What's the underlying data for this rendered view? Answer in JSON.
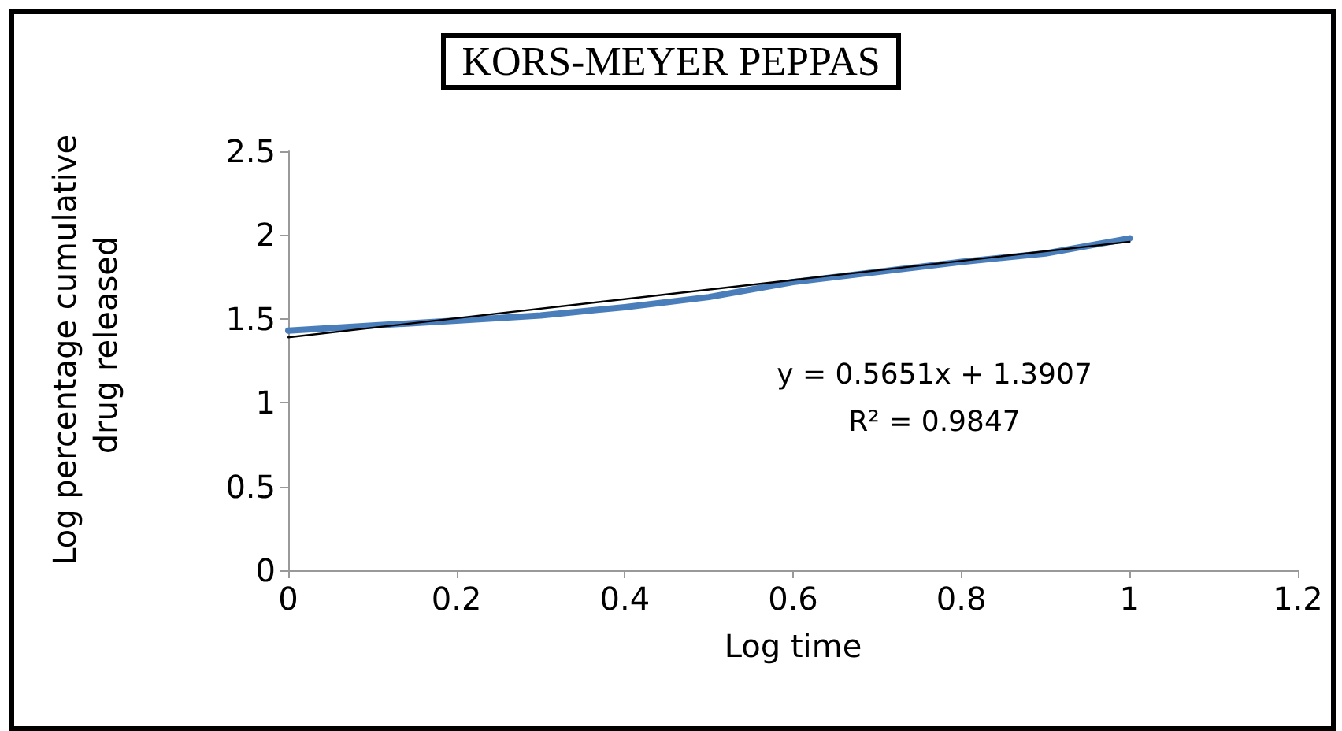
{
  "chart_data": {
    "type": "line",
    "title": "KORS-MEYER PEPPAS",
    "xlabel": "Log time",
    "ylabel": "Log percentage cumulative drug released",
    "series": [
      {
        "color": "#4a7ebb",
        "x": [
          0,
          0.1,
          0.2,
          0.3,
          0.4,
          0.5,
          0.6,
          0.7,
          0.8,
          0.9,
          1
        ],
        "values": [
          1.43,
          1.46,
          1.49,
          1.52,
          1.57,
          1.63,
          1.72,
          1.78,
          1.84,
          1.89,
          1.98
        ]
      },
      {
        "type": "line",
        "color": "#000000",
        "x": [
          0,
          1
        ],
        "values": [
          1.39,
          1.96
        ]
      }
    ],
    "annotations": [
      "y = 0.5651x + 1.3907",
      "R² = 0.9847"
    ],
    "xlim": [
      0,
      1.2
    ],
    "xticks": [
      0,
      0.2,
      0.4,
      0.6,
      0.8,
      1,
      1.2
    ],
    "ylim": [
      0,
      2.5
    ],
    "yticks": [
      0,
      0.5,
      1,
      1.5,
      2,
      2.5
    ],
    "marker": "none",
    "grid": false
  }
}
